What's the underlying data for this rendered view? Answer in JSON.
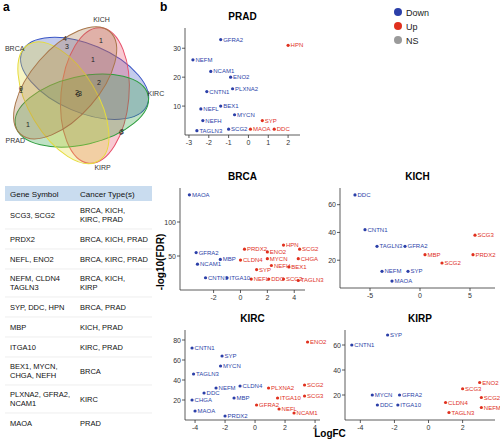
{
  "panel_labels": [
    "a",
    "b"
  ],
  "venn": {
    "sets": [
      {
        "name": "BRCA",
        "color": "#3a56c5"
      },
      {
        "name": "KICH",
        "color": "#e8506a"
      },
      {
        "name": "KIRC",
        "color": "#2e9e3e"
      },
      {
        "name": "KIRP",
        "color": "#e6dc3c"
      },
      {
        "name": "PRAD",
        "color": "#a8764a"
      }
    ],
    "regions": [
      {
        "sets": [
          "BRCA"
        ],
        "count": 4
      },
      {
        "sets": [
          "KICH"
        ],
        "count": 0
      },
      {
        "sets": [
          "KIRC"
        ],
        "count": 3
      },
      {
        "sets": [
          "KIRP"
        ],
        "count": 0
      },
      {
        "sets": [
          "PRAD"
        ],
        "count": 1
      },
      {
        "sets": [
          "BRCA",
          "PRAD"
        ],
        "count": 3
      },
      {
        "sets": [
          "KICH",
          "PRAD"
        ],
        "count": 1
      },
      {
        "sets": [
          "KIRC",
          "PRAD"
        ],
        "count": 1
      },
      {
        "sets": [
          "BRCA",
          "KICH",
          "PRAD"
        ],
        "count": 1
      },
      {
        "sets": [
          "BRCA",
          "KIRC",
          "PRAD"
        ],
        "count": 2
      },
      {
        "sets": [
          "BRCA",
          "KICH",
          "KIRP"
        ],
        "count": 3
      },
      {
        "sets": [
          "BRCA",
          "KICH",
          "KIRC",
          "PRAD"
        ],
        "count": 2
      },
      {
        "sets": [
          "BRCA",
          "KICH",
          "KIRC",
          "KIRP",
          "PRAD"
        ],
        "count": 0
      }
    ]
  },
  "table": {
    "header": [
      "Gene Symbol",
      "Cancer Type(s)"
    ],
    "rows": [
      [
        [
          "SCG3, SCG2"
        ],
        [
          "BRCA, KICH,",
          "KIRC, PRAD"
        ]
      ],
      [
        [
          "PRDX2"
        ],
        [
          "BRCA, KICH, PRAD"
        ]
      ],
      [
        [
          "NEFL, ENO2"
        ],
        [
          "BRCA, KIRC, PRAD"
        ]
      ],
      [
        [
          "NEFM, CLDN4",
          "TAGLN3"
        ],
        [
          "BRCA, KICH,",
          "KIRP"
        ]
      ],
      [
        [
          "SYP, DDC, HPN"
        ],
        [
          "BRCA, PRAD"
        ]
      ],
      [
        [
          "MBP"
        ],
        [
          "KICH, PRAD"
        ]
      ],
      [
        [
          "ITGA10"
        ],
        [
          "KIRC, PRAD"
        ]
      ],
      [
        [
          "BEX1, MYCN,",
          "CHGA, NEFH"
        ],
        [
          "BRCA"
        ]
      ],
      [
        [
          "PLXNA2, GFRA2,",
          "NCAM1"
        ],
        [
          "KIRC"
        ]
      ],
      [
        [
          "MAOA"
        ],
        [
          "PRAD"
        ]
      ]
    ]
  },
  "shared_axes": {
    "y_label": "-log10(FDR)",
    "x_label": "LogFC"
  },
  "chart_data": [
    {
      "type": "scatter",
      "title": "PRAD",
      "xlim": [
        -3.2,
        2.6
      ],
      "ylim": [
        0,
        37
      ],
      "xticks": [
        -3,
        -2,
        -1,
        0,
        1,
        2
      ],
      "yticks": [
        10,
        20,
        30
      ],
      "series": [
        {
          "name": "Down",
          "color": "#2b3fa8",
          "labels": [
            "GFRA2",
            "NEFM",
            "NCAM1",
            "ENO2",
            "PLXNA2",
            "CNTN1",
            "NEFL",
            "BEX1",
            "MYCN",
            "NEFH",
            "SCG2",
            "TAGLN3"
          ],
          "x": [
            -1.4,
            -2.8,
            -1.9,
            -0.9,
            -0.8,
            -2.1,
            -2.4,
            -1.4,
            -0.7,
            -2.3,
            -1.0,
            -2.6
          ],
          "values": [
            33,
            26,
            22,
            20,
            16,
            15,
            9,
            10,
            7,
            5,
            2,
            1.5
          ]
        },
        {
          "name": "Up",
          "color": "#e0301e",
          "labels": [
            "HPN",
            "SYP",
            "MAOA",
            "DDC"
          ],
          "x": [
            2.0,
            0.7,
            0.1,
            1.3
          ],
          "values": [
            31,
            5,
            2,
            2
          ]
        },
        {
          "name": "NS",
          "color": "#9a9a9a",
          "labels": [],
          "x": [],
          "values": []
        }
      ]
    },
    {
      "type": "scatter",
      "title": "BRCA",
      "xlim": [
        -4.5,
        4.8
      ],
      "ylim": [
        0,
        150
      ],
      "xticks": [
        -2,
        0,
        2,
        4
      ],
      "yticks": [
        50,
        100
      ],
      "series": [
        {
          "name": "Down",
          "color": "#2b3fa8",
          "labels": [
            "MAOA",
            "GFRA2",
            "NCAM1",
            "MBP",
            "CNTN1",
            "ITGA10"
          ],
          "x": [
            -3.8,
            -3.3,
            -3.2,
            -1.5,
            -2.6,
            -1.0
          ],
          "values": [
            140,
            55,
            38,
            45,
            18,
            18
          ]
        },
        {
          "name": "Up",
          "color": "#e0301e",
          "labels": [
            "PRDX2",
            "ENO2",
            "HPN",
            "SCG2",
            "CLDN4",
            "MYCN",
            "NEFH",
            "CHGA",
            "BEX1",
            "SYP",
            "NEFL",
            "DDC",
            "SCG3",
            "TAGLN3"
          ],
          "x": [
            0.3,
            2.0,
            3.2,
            4.4,
            0.0,
            2.0,
            2.3,
            4.3,
            3.6,
            1.2,
            0.8,
            2.1,
            3.2,
            4.3
          ],
          "values": [
            60,
            56,
            66,
            60,
            44,
            46,
            36,
            46,
            34,
            30,
            16,
            16,
            16,
            14
          ]
        }
      ]
    },
    {
      "type": "scatter",
      "title": "KICH",
      "xlim": [
        -8,
        7.5
      ],
      "ylim": [
        0,
        72
      ],
      "xticks": [
        -5,
        0,
        5
      ],
      "yticks": [
        20,
        40,
        60
      ],
      "series": [
        {
          "name": "Down",
          "color": "#2b3fa8",
          "labels": [
            "DDC",
            "CNTN1",
            "TAGLN3",
            "GFRA2",
            "NEFM",
            "SYP",
            "MAOA"
          ],
          "x": [
            -6.5,
            -5.5,
            -4.3,
            -1.5,
            -3.8,
            -1.2,
            -2.8
          ],
          "values": [
            67,
            42,
            30,
            30,
            12,
            12,
            5
          ]
        },
        {
          "name": "Up",
          "color": "#e0301e",
          "labels": [
            "SCG3",
            "PRDX2",
            "MBP",
            "SCG2"
          ],
          "x": [
            5.5,
            5.3,
            0.5,
            2.2
          ],
          "values": [
            38,
            24,
            24,
            18
          ]
        }
      ]
    },
    {
      "type": "scatter",
      "title": "KIRC",
      "xlim": [
        -4.67,
        4.33
      ],
      "ylim": [
        0,
        90
      ],
      "xticks": [
        -4,
        -2,
        0,
        2,
        4
      ],
      "yticks": [
        20,
        40,
        60,
        80
      ],
      "series": [
        {
          "name": "Down",
          "color": "#2b3fa8",
          "labels": [
            "CNTN1",
            "SYP",
            "MYCN",
            "TAGLN3",
            "NEFM",
            "CLDN4",
            "DDC",
            "MBP",
            "CHGA",
            "MAOA",
            "PRDX2"
          ],
          "x": [
            -4.2,
            -2.2,
            -2.3,
            -4.1,
            -2.6,
            -1.0,
            -3.4,
            -1.4,
            -4.2,
            -4.0,
            -2.0
          ],
          "values": [
            72,
            64,
            54,
            46,
            32,
            34,
            27,
            22,
            20,
            9,
            4
          ]
        },
        {
          "name": "Up",
          "color": "#e0301e",
          "labels": [
            "ENO2",
            "PLXNA2",
            "SCG2",
            "SCG3",
            "ITGA10",
            "GFRA2",
            "NEFL",
            "NCAM1"
          ],
          "x": [
            3.5,
            0.9,
            3.3,
            3.3,
            1.5,
            0.1,
            1.6,
            2.6
          ],
          "values": [
            78,
            32,
            35,
            24,
            22,
            15,
            11,
            7
          ]
        }
      ]
    },
    {
      "type": "scatter",
      "title": "KIRP",
      "xlim": [
        -4.9,
        3.9
      ],
      "ylim": [
        0,
        72
      ],
      "xticks": [
        -4,
        -2,
        0,
        2
      ],
      "yticks": [
        20,
        40,
        60
      ],
      "series": [
        {
          "name": "Down",
          "color": "#2b3fa8",
          "labels": [
            "CNTN1",
            "SYP",
            "MYCN",
            "GFRA2",
            "DDC",
            "ITGA10"
          ],
          "x": [
            -4.5,
            -2.4,
            -3.3,
            -1.7,
            -3.0,
            -1.8
          ],
          "values": [
            60,
            68,
            20,
            20,
            12,
            12
          ]
        },
        {
          "name": "Up",
          "color": "#e0301e",
          "labels": [
            "ENO2",
            "SCG3",
            "SCG2",
            "NEFM",
            "CLDN4",
            "TAGLN3"
          ],
          "x": [
            3.0,
            2.0,
            3.1,
            3.1,
            1.0,
            1.2
          ],
          "values": [
            30,
            25,
            18,
            10,
            14,
            6
          ]
        }
      ]
    }
  ]
}
